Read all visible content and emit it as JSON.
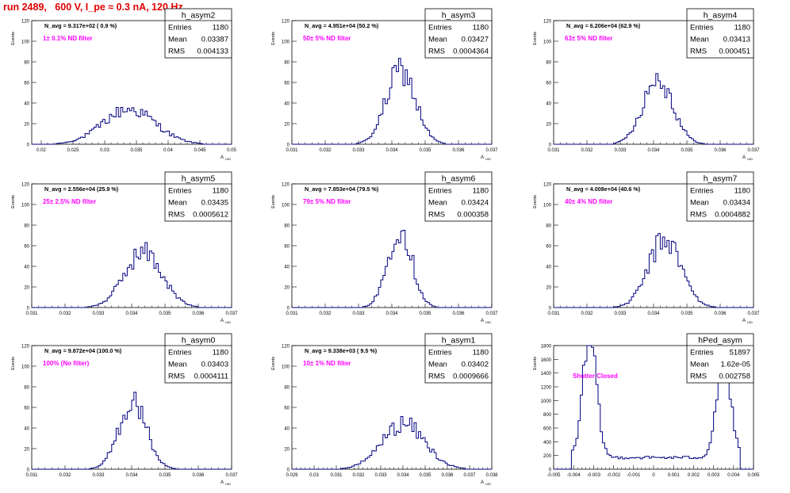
{
  "header": {
    "title": "run 2489,   600 V, I_pe ≈ 0.3 nA, 120 Hz"
  },
  "style": {
    "line_color": "#00007f",
    "annotation_color": "#ff00ff",
    "title_color": "#e00000"
  },
  "chart_data": [
    {
      "type": "histogram",
      "name": "h_asym2",
      "navg_text": "N_avg = 9.317e+02 ( 0.9 %)",
      "filter_text": "1± 0.1% ND filter",
      "stats": {
        "entries_label": "Entries",
        "entries": "1180",
        "mean_label": "Mean",
        "mean": "0.03387",
        "rms_label": "RMS",
        "rms": "0.004133"
      },
      "xlim": [
        0.0185,
        0.05
      ],
      "ylim": [
        0,
        120
      ],
      "xticks": [
        "0.02",
        "0.025",
        "0.03",
        "0.035",
        "0.04",
        "0.045",
        "0.05"
      ],
      "yticks": [
        "0",
        "20",
        "40",
        "60",
        "80",
        "100",
        "120"
      ],
      "ylabel": "Events",
      "xlabel": "A_UID",
      "mu": 0.03387,
      "sigma": 0.004133,
      "peak": 34
    },
    {
      "type": "histogram",
      "name": "h_asym3",
      "navg_text": "N_avg = 4.951e+04 (50.2 %)",
      "filter_text": "50± 5% ND filter",
      "stats": {
        "entries_label": "Entries",
        "entries": "1180",
        "mean_label": "Mean",
        "mean": "0.03427",
        "rms_label": "RMS",
        "rms": "0.0004364"
      },
      "xlim": [
        0.031,
        0.037
      ],
      "ylim": [
        0,
        120
      ],
      "xticks": [
        "0.031",
        "0.032",
        "0.033",
        "0.034",
        "0.035",
        "0.036",
        "0.037"
      ],
      "yticks": [
        "0",
        "20",
        "40",
        "60",
        "80",
        "100",
        "120"
      ],
      "ylabel": "Events",
      "xlabel": "A_UID",
      "mu": 0.03427,
      "sigma": 0.0004364,
      "peak": 72
    },
    {
      "type": "histogram",
      "name": "h_asym4",
      "navg_text": "N_avg = 6.206e+04 (62.9 %)",
      "filter_text": "63± 5% ND filter",
      "stats": {
        "entries_label": "Entries",
        "entries": "1180",
        "mean_label": "Mean",
        "mean": "0.03413",
        "rms_label": "RMS",
        "rms": "0.000451"
      },
      "xlim": [
        0.031,
        0.037
      ],
      "ylim": [
        0,
        120
      ],
      "xticks": [
        "0.031",
        "0.032",
        "0.033",
        "0.034",
        "0.035",
        "0.036",
        "0.037"
      ],
      "yticks": [
        "0",
        "20",
        "40",
        "60",
        "80",
        "100",
        "120"
      ],
      "ylabel": "Events",
      "xlabel": "A_UID",
      "mu": 0.03413,
      "sigma": 0.000451,
      "peak": 64
    },
    {
      "type": "histogram",
      "name": "h_asym5",
      "navg_text": "N_avg = 2.556e+04 (25.9 %)",
      "filter_text": "25± 2.5% ND filter",
      "stats": {
        "entries_label": "Entries",
        "entries": "1180",
        "mean_label": "Mean",
        "mean": "0.03435",
        "rms_label": "RMS",
        "rms": "0.0005612"
      },
      "xlim": [
        0.031,
        0.037
      ],
      "ylim": [
        0,
        120
      ],
      "xticks": [
        "0.031",
        "0.032",
        "0.033",
        "0.034",
        "0.035",
        "0.036",
        "0.037"
      ],
      "yticks": [
        "0",
        "20",
        "40",
        "60",
        "80",
        "100",
        "120"
      ],
      "ylabel": "Events",
      "xlabel": "A_UID",
      "mu": 0.03435,
      "sigma": 0.0005612,
      "peak": 54
    },
    {
      "type": "histogram",
      "name": "h_asym6",
      "navg_text": "N_avg = 7.853e+04 (79.5 %)",
      "filter_text": "79± 5% ND filter",
      "stats": {
        "entries_label": "Entries",
        "entries": "1180",
        "mean_label": "Mean",
        "mean": "0.03424",
        "rms_label": "RMS",
        "rms": "0.000358"
      },
      "xlim": [
        0.031,
        0.037
      ],
      "ylim": [
        0,
        120
      ],
      "xticks": [
        "0.031",
        "0.032",
        "0.033",
        "0.034",
        "0.035",
        "0.036",
        "0.037"
      ],
      "yticks": [
        "0",
        "20",
        "40",
        "60",
        "80",
        "100",
        "120"
      ],
      "ylabel": "Events",
      "xlabel": "A_UID",
      "mu": 0.03424,
      "sigma": 0.000358,
      "peak": 78
    },
    {
      "type": "histogram",
      "name": "h_asym7",
      "navg_text": "N_avg = 4.008e+04 (40.6 %)",
      "filter_text": "40± 4% ND filter",
      "stats": {
        "entries_label": "Entries",
        "entries": "1180",
        "mean_label": "Mean",
        "mean": "0.03434",
        "rms_label": "RMS",
        "rms": "0.0004882"
      },
      "xlim": [
        0.031,
        0.037
      ],
      "ylim": [
        0,
        120
      ],
      "xticks": [
        "0.031",
        "0.032",
        "0.033",
        "0.034",
        "0.035",
        "0.036",
        "0.037"
      ],
      "yticks": [
        "0",
        "20",
        "40",
        "60",
        "80",
        "100",
        "120"
      ],
      "ylabel": "Events",
      "xlabel": "A_UID",
      "mu": 0.03434,
      "sigma": 0.0004882,
      "peak": 66
    },
    {
      "type": "histogram",
      "name": "h_asym0",
      "navg_text": "N_avg = 9.872e+04 (100.0 %)",
      "filter_text": "100% (No filter)",
      "stats": {
        "entries_label": "Entries",
        "entries": "1180",
        "mean_label": "Mean",
        "mean": "0.03403",
        "rms_label": "RMS",
        "rms": "0.0004111"
      },
      "xlim": [
        0.031,
        0.037
      ],
      "ylim": [
        0,
        120
      ],
      "xticks": [
        "0.031",
        "0.032",
        "0.033",
        "0.034",
        "0.035",
        "0.036",
        "0.037"
      ],
      "yticks": [
        "0",
        "20",
        "40",
        "60",
        "80",
        "100",
        "120"
      ],
      "ylabel": "Events",
      "xlabel": "A_UID",
      "mu": 0.03403,
      "sigma": 0.0004111,
      "peak": 66
    },
    {
      "type": "histogram",
      "name": "h_asym1",
      "navg_text": "N_avg = 9.338e+03 ( 9.5 %)",
      "filter_text": "10± 1% ND filter",
      "stats": {
        "entries_label": "Entries",
        "entries": "1180",
        "mean_label": "Mean",
        "mean": "0.03402",
        "rms_label": "RMS",
        "rms": "0.0009666"
      },
      "xlim": [
        0.029,
        0.038
      ],
      "ylim": [
        0,
        120
      ],
      "xticks": [
        "0.029",
        "0.03",
        "0.031",
        "0.032",
        "0.033",
        "0.034",
        "0.035",
        "0.036",
        "0.037",
        "0.038"
      ],
      "yticks": [
        "0",
        "20",
        "40",
        "60",
        "80",
        "100",
        "120"
      ],
      "ylabel": "Events",
      "xlabel": "A_UID",
      "mu": 0.03402,
      "sigma": 0.0009666,
      "peak": 44
    },
    {
      "type": "histogram",
      "name": "hPed_asym",
      "navg_text": "",
      "filter_text": "Shutter Closed",
      "stats": {
        "entries_label": "Entries",
        "entries": "51897",
        "mean_label": "Mean",
        "mean": "1.62e-05",
        "rms_label": "RMS",
        "rms": "0.002758"
      },
      "xlim": [
        -0.005,
        0.005
      ],
      "ylim": [
        0,
        1800
      ],
      "xticks": [
        "-0.005",
        "-0.004",
        "-0.003",
        "-0.002",
        "-0.001",
        "0",
        "0.001",
        "0.002",
        "0.003",
        "0.004",
        "0.005"
      ],
      "yticks": [
        "0",
        "200",
        "400",
        "600",
        "800",
        "1000",
        "1200",
        "1400",
        "1600",
        "1800"
      ],
      "ylabel": "Events",
      "xlabel": "",
      "bimodal": {
        "peaks": [
          [
            -0.0032,
            0.00035,
            1720
          ],
          [
            0.0035,
            0.00035,
            1450
          ]
        ],
        "floor": 170
      }
    }
  ]
}
